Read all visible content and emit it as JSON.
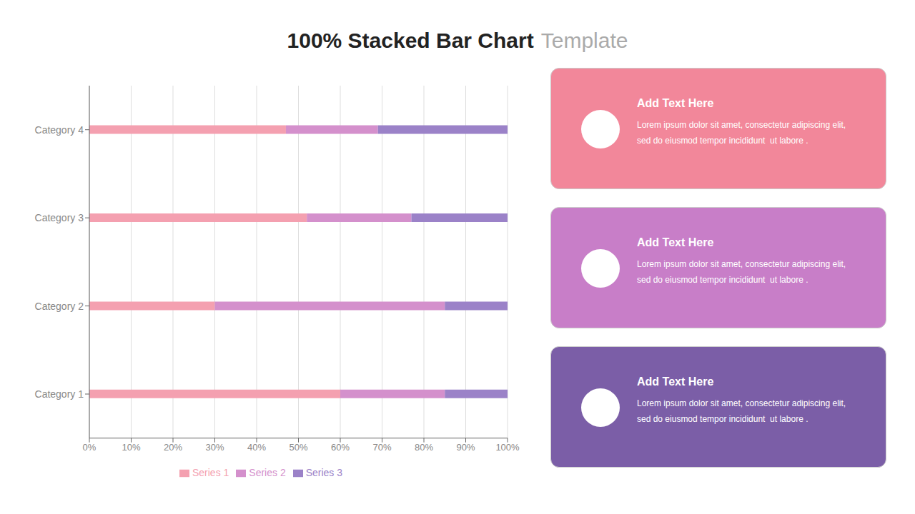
{
  "chart_data": {
    "type": "bar",
    "title": "100% Stacked Bar Chart",
    "subtitle": "Template",
    "orientation": "horizontal",
    "stacked": true,
    "categories": [
      "Category 1",
      "Category 2",
      "Category 3",
      "Category 4"
    ],
    "series": [
      {
        "name": "Series 1",
        "color": "#F4A0B0",
        "values": [
          60,
          30,
          52,
          47
        ]
      },
      {
        "name": "Series 2",
        "color": "#D490CC",
        "values": [
          25,
          55,
          25,
          22
        ]
      },
      {
        "name": "Series 3",
        "color": "#9B82C8",
        "values": [
          15,
          15,
          23,
          31
        ]
      }
    ],
    "xlim": [
      0,
      100
    ],
    "xticks": [
      {
        "value": 0,
        "label": "0%"
      },
      {
        "value": 10,
        "label": "10%"
      },
      {
        "value": 20,
        "label": "20%"
      },
      {
        "value": 30,
        "label": "30%"
      },
      {
        "value": 40,
        "label": "40%"
      },
      {
        "value": 50,
        "label": "50%"
      },
      {
        "value": 60,
        "label": "60%"
      },
      {
        "value": 70,
        "label": "70%"
      },
      {
        "value": 80,
        "label": "80%"
      },
      {
        "value": 90,
        "label": "90%"
      },
      {
        "value": 100,
        "label": "100%"
      }
    ],
    "grid": true,
    "legend": "bottom",
    "annotations": [
      "Add Text Here",
      "Lorem ipsum dolor sit amet, consectetur adipiscing elit,",
      "sed do eiusmod tempor incididunt  ut labore .",
      "Add Text Here",
      "Lorem ipsum dolor sit amet, consectetur adipiscing elit,",
      "sed do eiusmod tempor incididunt  ut labore .",
      "Add Text Here",
      "Lorem ipsum dolor sit amet, consectetur adipiscing elit,",
      "sed do eiusmod tempor incididunt  ut labore ."
    ]
  }
}
